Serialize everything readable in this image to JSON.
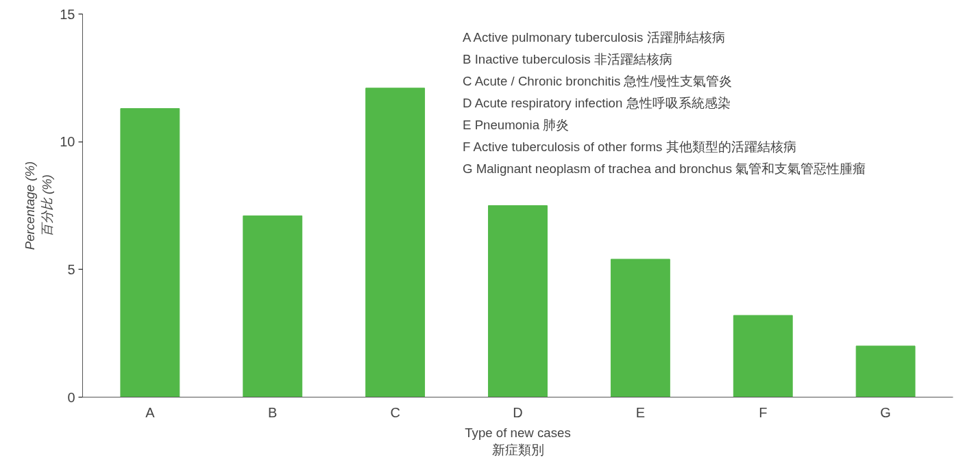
{
  "chart_data": {
    "type": "bar",
    "xlabel": "Type of new cases\n新症類別",
    "ylabel": "Percentage (%)\n百分比 (%)",
    "categories": [
      "A",
      "B",
      "C",
      "D",
      "E",
      "F",
      "G"
    ],
    "values": [
      11.3,
      7.1,
      12.1,
      7.5,
      5.4,
      3.2,
      2.0
    ],
    "color": "#52b848",
    "ylim": [
      0,
      15
    ],
    "yticks": [
      0,
      5,
      10,
      15
    ],
    "grid": false,
    "annotations": [
      "A  Active pulmonary tuberculosis  活躍肺結核病",
      "B  Inactive tuberculosis 非活躍結核病",
      "C  Acute / Chronic bronchitis 急性/慢性支氣管炎",
      "D  Acute respiratory infection  急性呼吸系統感染",
      "E  Pneumonia 肺炎",
      "F  Active tuberculosis of other forms 其他類型的活躍結核病",
      "G  Malignant neoplasm of trachea and bronchus 氣管和支氣管惡性腫瘤"
    ]
  }
}
